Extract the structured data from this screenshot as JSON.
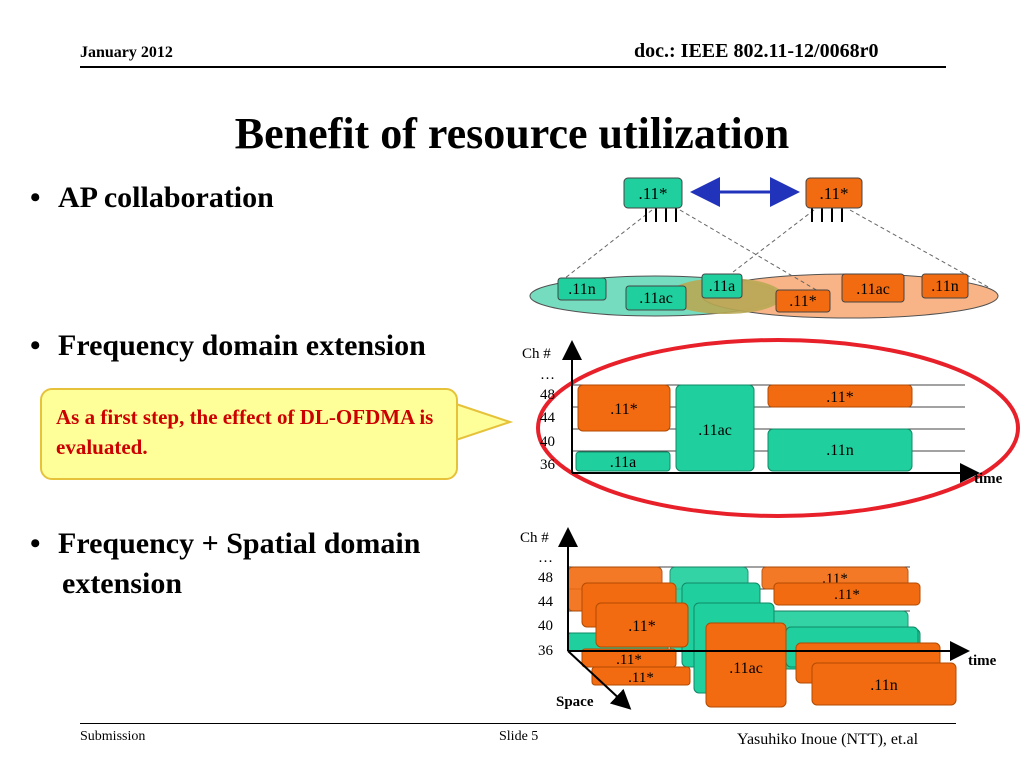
{
  "header": {
    "date": "January 2012",
    "doc": "doc.: IEEE 802.11-12/0068r0"
  },
  "title": "Benefit of resource utilization",
  "bullets": {
    "b1": "AP collaboration",
    "b2": "Frequency domain extension",
    "b3_line1": "Frequency + Spatial domain",
    "b3_line2": "extension",
    "bullet_char": "•"
  },
  "callout": {
    "text": "As a first step, the effect of DL-OFDMA is evaluated."
  },
  "diagram_ap": {
    "ap_left": ".11*",
    "ap_right": ".11*",
    "sta1": ".11n",
    "sta2": ".11ac",
    "sta3": ".11a",
    "sta4": ".11*",
    "sta5": ".11ac",
    "sta6": ".11n"
  },
  "diagram_freq": {
    "ylabel": "Ch #",
    "dots": "…",
    "ch48": "48",
    "ch44": "44",
    "ch40": "40",
    "ch36": "36",
    "xlabel": "time",
    "blk_11star_left": ".11*",
    "blk_11ac": ".11ac",
    "blk_11star_right": ".11*",
    "blk_11n": ".11n",
    "blk_11a": ".11a"
  },
  "diagram_spatial": {
    "ylabel": "Ch #",
    "dots": "…",
    "ch48": "48",
    "ch44": "44",
    "ch40": "40",
    "ch36": "36",
    "xlabel": "time",
    "zlabel": "Space",
    "blk_11star_back": ".11*",
    "blk_11star_mid": ".11*",
    "blk_11star_front": ".11*",
    "blk_11star_low1": ".11*",
    "blk_11star_low2": ".11*",
    "blk_11ac": ".11ac",
    "blk_11n": ".11n"
  },
  "colors": {
    "orange": "#f26b10",
    "teal": "#1fcf9d",
    "red_ellipse": "#e8202a",
    "arrow_blue": "#2233bb"
  },
  "footer": {
    "submission": "Submission",
    "slide": "Slide 5",
    "author": "Yasuhiko Inoue (NTT), et.al"
  }
}
